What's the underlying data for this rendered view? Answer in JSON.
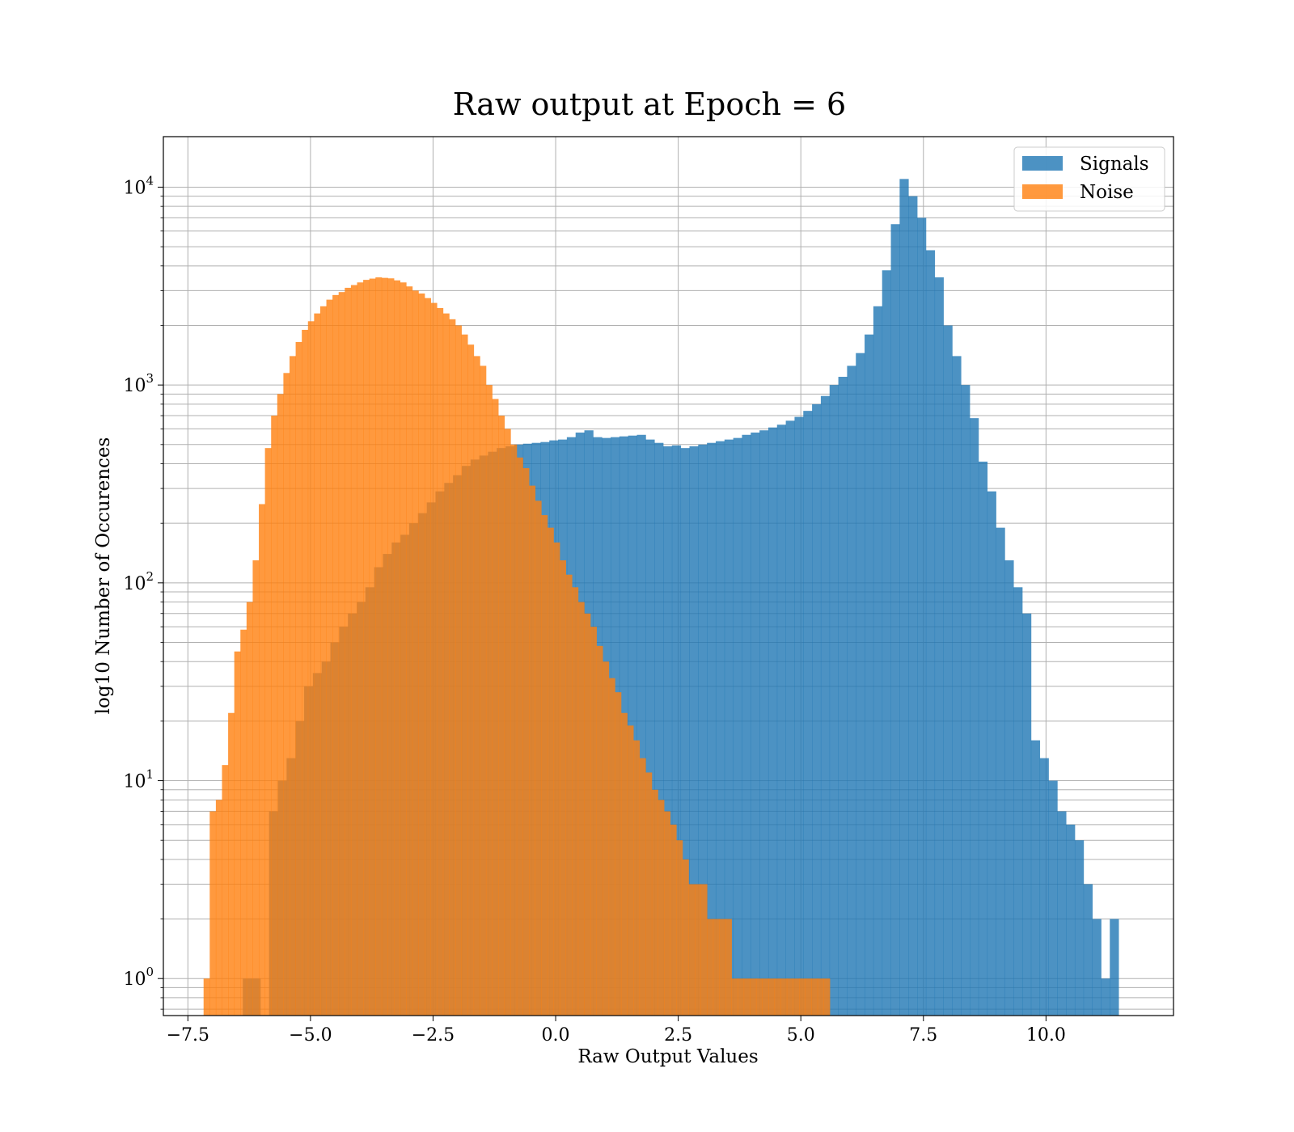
{
  "chart_data": {
    "type": "bar",
    "title": "Raw output at Epoch = 6",
    "xlabel": "Raw Output Values",
    "ylabel": "log10 Number of Occurences",
    "xlim": [
      -8.0,
      12.6
    ],
    "ylim": [
      0.65,
      18000
    ],
    "yscale": "log",
    "grid": true,
    "legend_position": "top-right",
    "x_ticks": [
      -7.5,
      -5.0,
      -2.5,
      0.0,
      2.5,
      5.0,
      7.5,
      10.0
    ],
    "x_tick_labels": [
      "−7.5",
      "−5.0",
      "−2.5",
      "0.0",
      "2.5",
      "5.0",
      "7.5",
      "10.0"
    ],
    "y_ticks": [
      {
        "value": 1,
        "base": "10",
        "exp": "0"
      },
      {
        "value": 10,
        "base": "10",
        "exp": "1"
      },
      {
        "value": 100,
        "base": "10",
        "exp": "2"
      },
      {
        "value": 1000,
        "base": "10",
        "exp": "3"
      },
      {
        "value": 10000,
        "base": "10",
        "exp": "4"
      }
    ],
    "series": [
      {
        "name": "Signals",
        "color": "#1f77b4",
        "opacity": 0.8,
        "bin_start": -6.38,
        "bin_width": 0.1786,
        "counts": [
          1,
          1,
          0,
          7,
          10,
          13,
          20,
          30,
          35,
          40,
          50,
          60,
          70,
          80,
          95,
          120,
          140,
          160,
          175,
          200,
          225,
          255,
          290,
          320,
          350,
          390,
          420,
          440,
          460,
          480,
          490,
          500,
          505,
          510,
          515,
          525,
          530,
          545,
          575,
          590,
          545,
          540,
          545,
          550,
          555,
          560,
          530,
          510,
          490,
          495,
          480,
          490,
          500,
          510,
          520,
          530,
          540,
          560,
          575,
          590,
          610,
          630,
          660,
          690,
          740,
          800,
          880,
          1000,
          1100,
          1250,
          1450,
          1800,
          2500,
          3800,
          6500,
          11000,
          9000,
          7000,
          4800,
          3500,
          2000,
          1400,
          1000,
          680,
          410,
          290,
          190,
          130,
          95,
          70,
          16,
          13,
          10,
          7,
          6,
          5,
          3,
          2,
          1,
          2
        ]
      },
      {
        "name": "Noise",
        "color": "#ff7f0e",
        "opacity": 0.8,
        "bin_start": -7.18,
        "bin_width": 0.1252,
        "counts": [
          1,
          7,
          8,
          12,
          22,
          45,
          58,
          80,
          130,
          250,
          480,
          700,
          900,
          1150,
          1400,
          1650,
          1900,
          2100,
          2300,
          2500,
          2700,
          2850,
          2950,
          3100,
          3200,
          3300,
          3400,
          3450,
          3500,
          3480,
          3460,
          3380,
          3300,
          3150,
          3000,
          2900,
          2750,
          2600,
          2450,
          2300,
          2150,
          2000,
          1800,
          1600,
          1400,
          1250,
          1000,
          850,
          700,
          600,
          500,
          430,
          380,
          310,
          260,
          220,
          190,
          160,
          130,
          110,
          95,
          80,
          70,
          60,
          48,
          40,
          33,
          28,
          22,
          19,
          16,
          13,
          11,
          9,
          8,
          7,
          6,
          5,
          4,
          3,
          3,
          3,
          2,
          2,
          2,
          2,
          1,
          1,
          1,
          1,
          1,
          1,
          1,
          1,
          1,
          1,
          1,
          1,
          1,
          1,
          1,
          1
        ]
      }
    ]
  }
}
